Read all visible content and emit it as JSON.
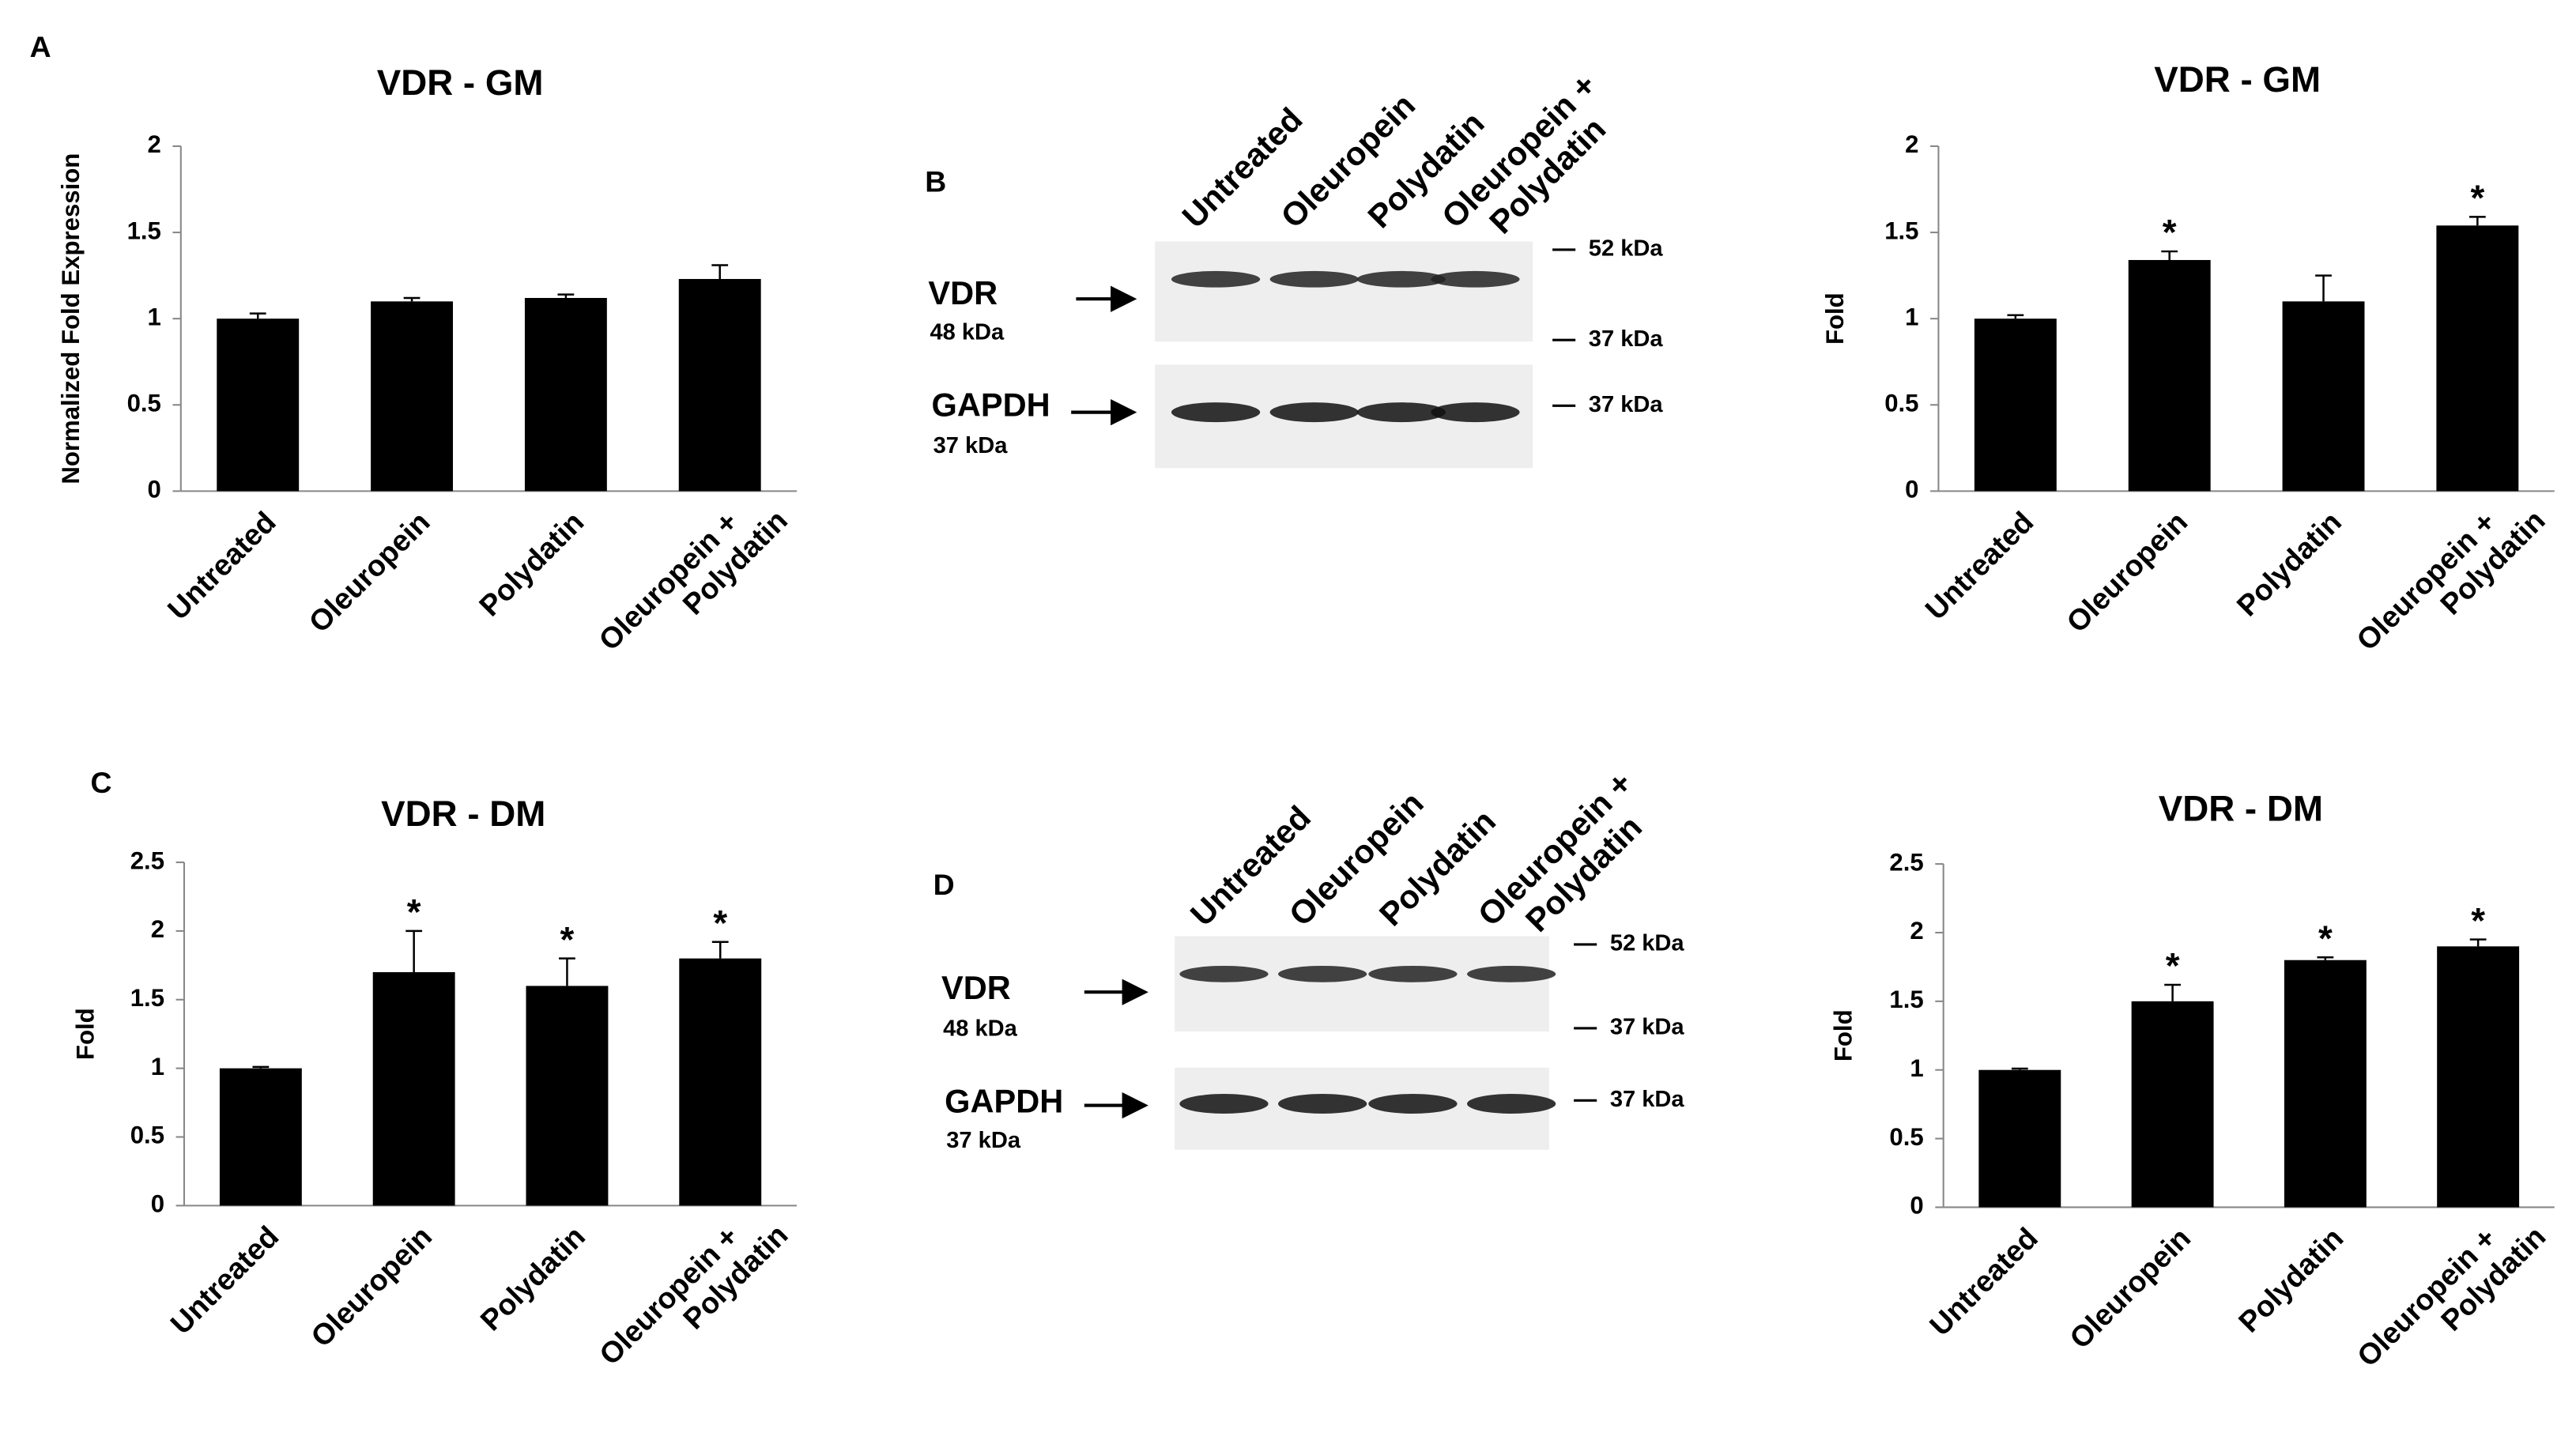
{
  "chart_data": [
    {
      "type": "bar",
      "panel_label": "A",
      "title": "VDR - GM",
      "ylabel": "Normalized Fold Expression",
      "categories": [
        "Untreated",
        "Oleuropein",
        "Polydatin",
        "Oleuropein + Polydatin"
      ],
      "values": [
        1.0,
        1.1,
        1.12,
        1.23
      ],
      "errors": [
        0.03,
        0.02,
        0.02,
        0.08
      ],
      "significance": [
        null,
        null,
        null,
        null
      ],
      "color": "#000000",
      "ylim": [
        0,
        2
      ],
      "yticks": [
        0,
        0.5,
        1,
        1.5,
        2
      ]
    },
    {
      "type": "bar",
      "title": "VDR - GM",
      "ylabel": "Fold",
      "categories": [
        "Untreated",
        "Oleuropein",
        "Polydatin",
        "Oleuropein + Polydatin"
      ],
      "values": [
        1.0,
        1.34,
        1.1,
        1.54
      ],
      "errors": [
        0.02,
        0.05,
        0.15,
        0.05
      ],
      "significance": [
        null,
        "*",
        null,
        "*"
      ],
      "color": "#000000",
      "ylim": [
        0,
        2
      ],
      "yticks": [
        0,
        0.5,
        1,
        1.5,
        2
      ]
    },
    {
      "type": "bar",
      "panel_label": "C",
      "title": "VDR - DM",
      "ylabel": "Fold",
      "categories": [
        "Untreated",
        "Oleuropein",
        "Polydatin",
        "Oleuropein + Polydatin"
      ],
      "values": [
        1.0,
        1.7,
        1.6,
        1.8
      ],
      "errors": [
        0.01,
        0.3,
        0.2,
        0.12
      ],
      "significance": [
        null,
        "*",
        "*",
        "*"
      ],
      "color": "#000000",
      "ylim": [
        0,
        2.5
      ],
      "yticks": [
        0,
        0.5,
        1,
        1.5,
        2,
        2.5
      ]
    },
    {
      "type": "bar",
      "title": "VDR - DM",
      "ylabel": "Fold",
      "categories": [
        "Untreated",
        "Oleuropein",
        "Polydatin",
        "Oleuropein + Polydatin"
      ],
      "values": [
        1.0,
        1.5,
        1.8,
        1.9
      ],
      "errors": [
        0.01,
        0.12,
        0.02,
        0.05
      ],
      "significance": [
        null,
        "*",
        "*",
        "*"
      ],
      "color": "#000000",
      "ylim": [
        0,
        2.5
      ],
      "yticks": [
        0,
        0.5,
        1,
        1.5,
        2,
        2.5
      ]
    }
  ],
  "blots": [
    {
      "panel_label": "B",
      "lanes": [
        "Untreated",
        "Oleuropein",
        "Polydatin",
        "Oleuropein + Polydatin"
      ],
      "rows": [
        {
          "protein": "VDR",
          "size": "48 kDa"
        },
        {
          "protein": "GAPDH",
          "size": "37 kDa"
        }
      ],
      "markers": [
        "52 kDa",
        "37 kDa",
        "37 kDa"
      ]
    },
    {
      "panel_label": "D",
      "lanes": [
        "Untreated",
        "Oleuropein",
        "Polydatin",
        "Oleuropein + Polydatin"
      ],
      "rows": [
        {
          "protein": "VDR",
          "size": "48 kDa"
        },
        {
          "protein": "GAPDH",
          "size": "37 kDa"
        }
      ],
      "markers": [
        "52 kDa",
        "37 kDa",
        "37 kDa"
      ]
    }
  ]
}
